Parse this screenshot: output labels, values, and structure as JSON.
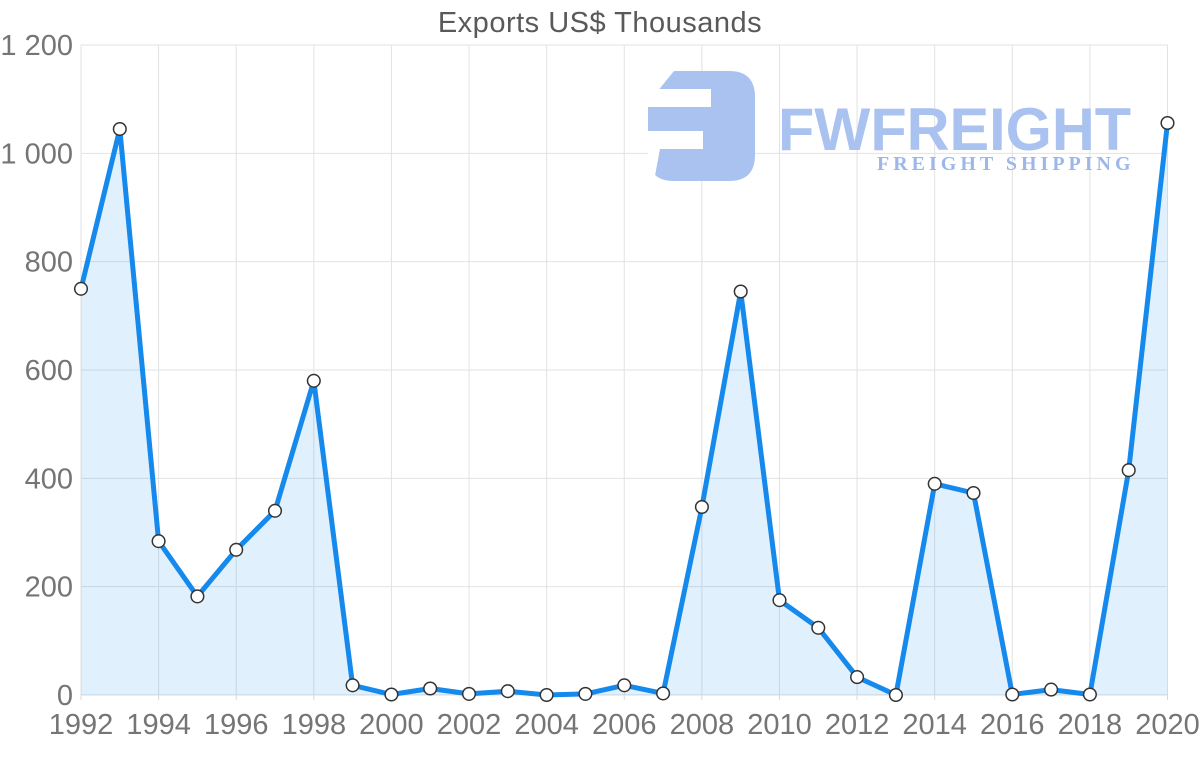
{
  "chart_data": {
    "type": "area",
    "title": "Exports US$ Thousands",
    "xlabel": "",
    "ylabel": "",
    "x": [
      1992,
      1993,
      1994,
      1995,
      1996,
      1997,
      1998,
      1999,
      2000,
      2001,
      2002,
      2003,
      2004,
      2005,
      2006,
      2007,
      2008,
      2009,
      2010,
      2011,
      2012,
      2013,
      2014,
      2015,
      2016,
      2017,
      2018,
      2019,
      2020
    ],
    "values": [
      750,
      1045,
      284,
      182,
      268,
      340,
      580,
      18,
      1,
      12,
      2,
      7,
      0,
      2,
      18,
      3,
      347,
      745,
      175,
      124,
      33,
      0,
      390,
      373,
      1,
      10,
      1,
      415,
      1056
    ],
    "ylim": [
      0,
      1200
    ],
    "y_ticks": [
      0,
      200,
      400,
      600,
      800,
      1000,
      1200
    ],
    "y_tick_labels": [
      "0",
      "200",
      "400",
      "600",
      "800",
      "1 000",
      "1 200"
    ],
    "x_tick_labels": [
      "1992",
      "1994",
      "1996",
      "1998",
      "2000",
      "2002",
      "2004",
      "2006",
      "2008",
      "2010",
      "2012",
      "2014",
      "2016",
      "2018",
      "2020"
    ],
    "x_tick_interval": 2,
    "grid": true,
    "legend": "none",
    "series_name": "Exports US$ Thousands",
    "colors": {
      "line": "#1689ec",
      "fill": "rgba(22,137,236,0.13)",
      "marker_fill": "#ffffff",
      "marker_stroke": "#333333",
      "grid_line": "#e2e2e2",
      "axis_line": "#d9d9d9",
      "tick_label": "#757575",
      "title": "#595959"
    }
  },
  "watermark": {
    "brand": "FWFREIGHT",
    "tagline": "FREIGHT SHIPPING",
    "color": "#a9c2ef"
  }
}
